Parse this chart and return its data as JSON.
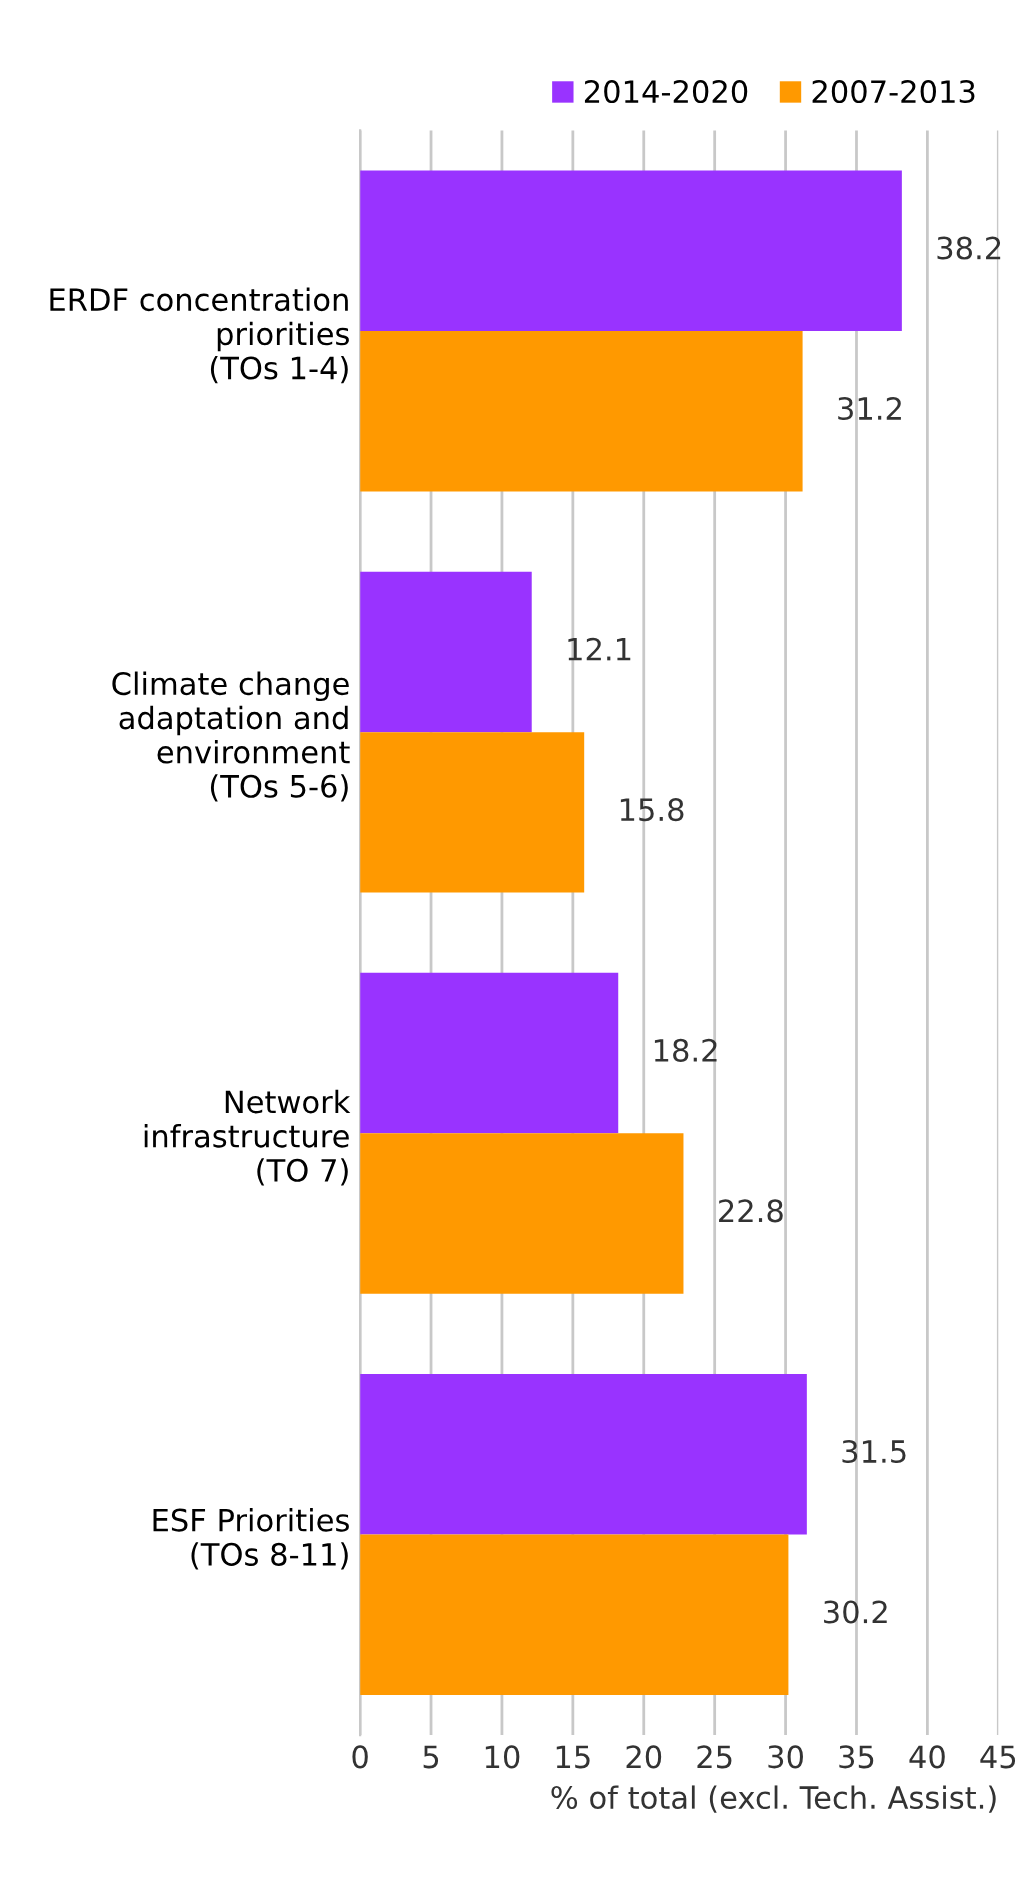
{
  "chart_data": {
    "type": "bar",
    "orientation": "horizontal",
    "xlabel": "% of total (excl. Tech. Assist.)",
    "categories": [
      "ERDF concentration\npriorities\n(TOs 1-4)",
      "Climate change\nadaptation and\nenvironment\n(TOs 5-6)",
      "Network\ninfrastructure\n(TO 7)",
      "ESF Priorities\n(TOs 8-11)"
    ],
    "series": [
      {
        "name": "2014-2020",
        "color": "#9933ff",
        "values": [
          38.2,
          12.1,
          18.2,
          31.5
        ]
      },
      {
        "name": "2007-2013",
        "color": "#ff9900",
        "values": [
          31.2,
          15.8,
          22.8,
          30.2
        ]
      }
    ],
    "xlim": [
      0,
      45
    ],
    "xticks": [
      0,
      5,
      10,
      15,
      20,
      25,
      30,
      35,
      40,
      45
    ],
    "grid": "x",
    "legend": "top right",
    "data_labels": true
  }
}
